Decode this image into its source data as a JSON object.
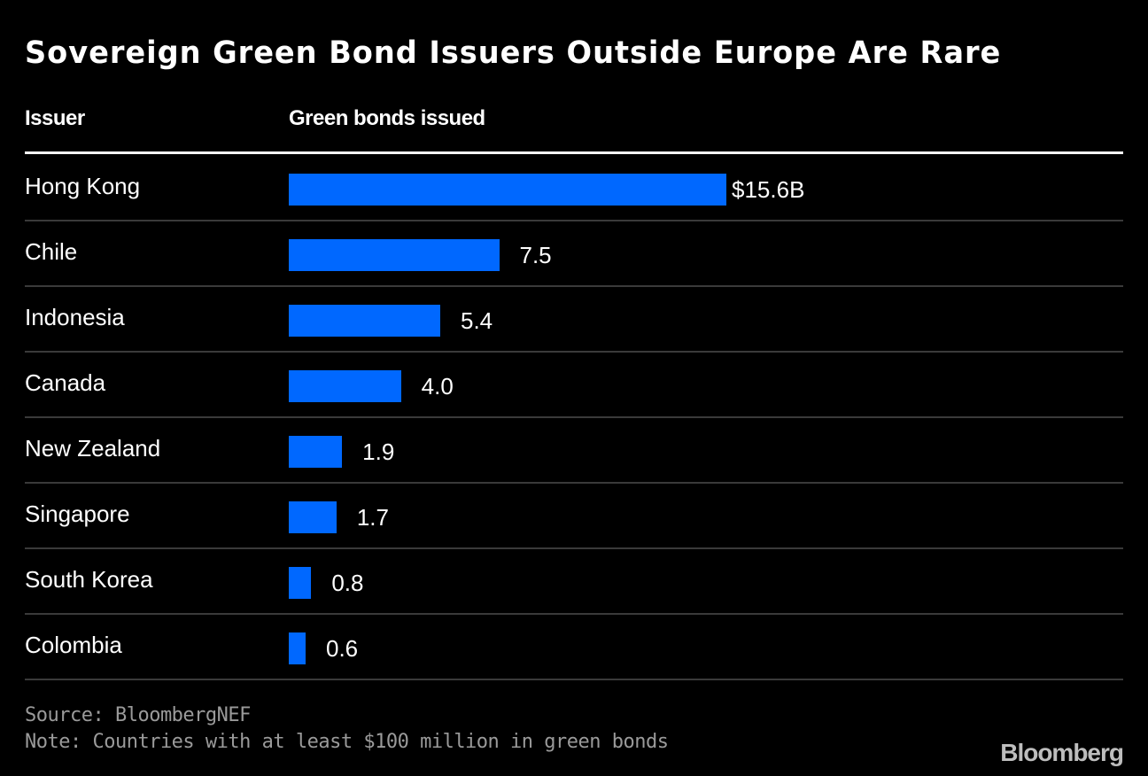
{
  "chart_data": {
    "type": "bar",
    "title": "Sovereign Green Bond Issuers Outside Europe Are Rare",
    "column_headers": [
      "Issuer",
      "Green bonds issued"
    ],
    "categories": [
      "Hong Kong",
      "Chile",
      "Indonesia",
      "Canada",
      "New Zealand",
      "Singapore",
      "South Korea",
      "Colombia"
    ],
    "values": [
      15.6,
      7.5,
      5.4,
      4.0,
      1.9,
      1.7,
      0.8,
      0.6
    ],
    "value_labels": [
      "$15.6B",
      "7.5",
      "5.4",
      "4.0",
      "1.9",
      "1.7",
      "0.8",
      "0.6"
    ],
    "unit": "USD billions",
    "orientation": "horizontal",
    "bar_color": "#0068ff",
    "source": "Source: BloombergNEF",
    "note": "Note: Countries with at least $100 million in green bonds",
    "logo": "Bloomberg"
  }
}
